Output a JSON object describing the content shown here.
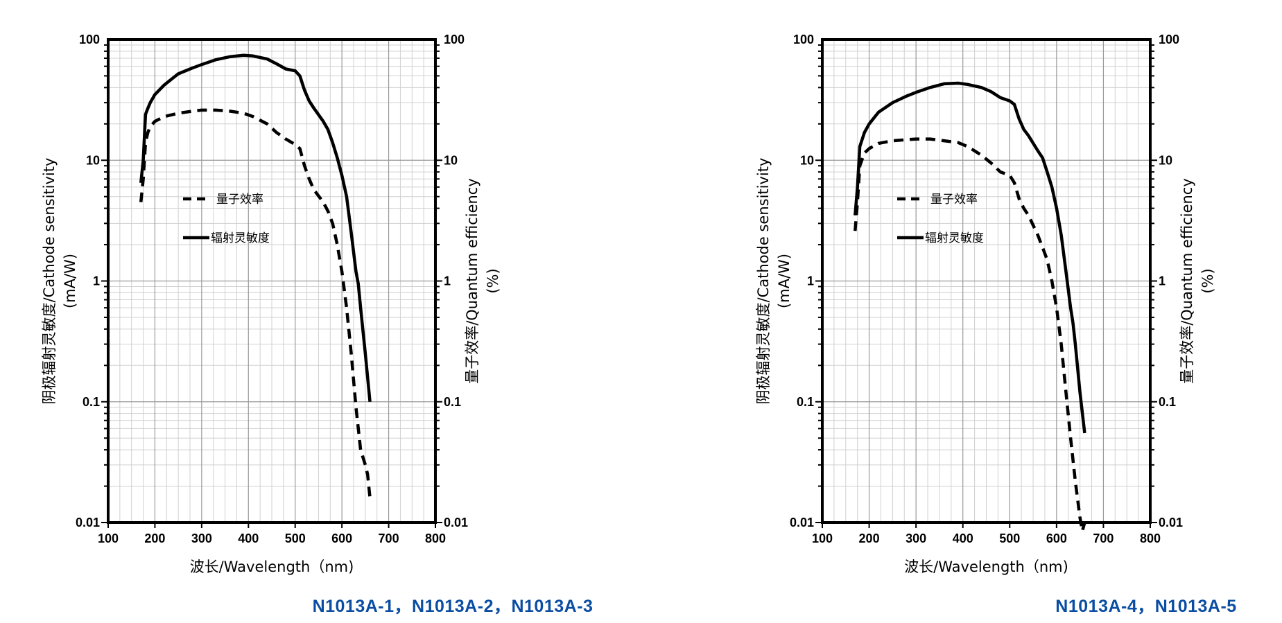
{
  "colors": {
    "text": "#000000",
    "caption": "#0a4da3",
    "grid_major": "#999999",
    "grid_minor": "#d0d0d0"
  },
  "chart_data": [
    {
      "type": "line",
      "caption": "N1013A-1，N1013A-2，N1013A-3",
      "xlabel": "波长/Wavelength（nm)",
      "ylabel_left": [
        "阴极辐射灵敏度/Cathode sensitivity",
        "(mA/W)"
      ],
      "ylabel_right": [
        "量子效率/Quantum efficiency",
        "(%)"
      ],
      "xlim": [
        100,
        800
      ],
      "ylim": [
        0.01,
        100
      ],
      "yscale": "log",
      "x_ticks": [
        "100",
        "200",
        "300",
        "400",
        "500",
        "600",
        "700",
        "800"
      ],
      "y_ticks": [
        "0.01",
        "0.1",
        "1",
        "10",
        "100"
      ],
      "legend": [
        {
          "name": "量子效率",
          "style": "dashed"
        },
        {
          "name": "辐射灵敏度",
          "style": "solid"
        }
      ],
      "series": [
        {
          "name": "辐射灵敏度",
          "style": "solid",
          "x": [
            170,
            175,
            180,
            185,
            190,
            200,
            220,
            250,
            280,
            300,
            330,
            360,
            390,
            410,
            440,
            460,
            480,
            500,
            510,
            520,
            530,
            540,
            560,
            570,
            580,
            590,
            600,
            610,
            620,
            630,
            635,
            640,
            650,
            660
          ],
          "y": [
            6.5,
            10,
            24,
            27,
            30,
            35,
            42,
            52,
            58,
            62,
            68,
            72,
            74,
            73,
            69,
            63,
            57,
            55,
            50,
            38,
            31,
            27,
            21,
            18,
            14,
            10.5,
            7.5,
            5,
            2.5,
            1.2,
            0.95,
            0.6,
            0.25,
            0.1
          ]
        },
        {
          "name": "量子效率",
          "style": "dashed",
          "x": [
            170,
            175,
            180,
            185,
            190,
            200,
            220,
            250,
            280,
            300,
            330,
            360,
            390,
            410,
            440,
            460,
            480,
            500,
            510,
            520,
            530,
            540,
            560,
            570,
            580,
            590,
            600,
            610,
            620,
            630,
            640,
            650,
            655,
            660
          ],
          "y": [
            4.5,
            7,
            14,
            17,
            19,
            21,
            23,
            24.5,
            25.5,
            26,
            26,
            25.5,
            24.5,
            23,
            20,
            17,
            15,
            13.5,
            12.5,
            9,
            7,
            5.7,
            4.5,
            3.8,
            3,
            2,
            1.2,
            0.6,
            0.25,
            0.09,
            0.04,
            0.03,
            0.025,
            0.016
          ]
        }
      ]
    },
    {
      "type": "line",
      "caption": "N1013A-4，N1013A-5",
      "xlabel": "波长/Wavelength（nm)",
      "ylabel_left": [
        "阴极辐射灵敏度/Cathode sensitivity",
        "(mA/W)"
      ],
      "ylabel_right": [
        "量子效率/Quantum efficiency",
        "(%)"
      ],
      "xlim": [
        100,
        800
      ],
      "ylim": [
        0.01,
        100
      ],
      "yscale": "log",
      "x_ticks": [
        "100",
        "200",
        "300",
        "400",
        "500",
        "600",
        "700",
        "800"
      ],
      "y_ticks": [
        "0.01",
        "0.1",
        "1",
        "10",
        "100"
      ],
      "legend": [
        {
          "name": "量子效率",
          "style": "dashed"
        },
        {
          "name": "辐射灵敏度",
          "style": "solid"
        }
      ],
      "series": [
        {
          "name": "辐射灵敏度",
          "style": "solid",
          "x": [
            170,
            175,
            180,
            190,
            200,
            220,
            250,
            280,
            300,
            330,
            360,
            390,
            410,
            440,
            460,
            480,
            500,
            510,
            520,
            530,
            540,
            560,
            570,
            580,
            590,
            600,
            610,
            620,
            630,
            635,
            640,
            650,
            660
          ],
          "y": [
            3.5,
            6,
            13,
            17,
            20,
            25,
            30,
            34,
            36.5,
            40,
            43,
            43.5,
            42.5,
            40,
            37,
            33,
            31,
            29,
            22,
            18,
            16,
            12,
            10.5,
            8,
            6,
            4,
            2.4,
            1.2,
            0.6,
            0.45,
            0.3,
            0.12,
            0.055
          ]
        },
        {
          "name": "量子效率",
          "style": "dashed",
          "x": [
            170,
            175,
            180,
            190,
            200,
            220,
            250,
            280,
            300,
            330,
            360,
            390,
            410,
            440,
            460,
            480,
            500,
            510,
            520,
            530,
            540,
            560,
            570,
            580,
            590,
            600,
            610,
            620,
            630,
            640,
            650,
            655,
            660
          ],
          "y": [
            2.6,
            4.5,
            9,
            11.5,
            12.5,
            13.8,
            14.5,
            14.8,
            15,
            15,
            14.5,
            14,
            13,
            11,
            9.5,
            8,
            7.5,
            6.5,
            4.8,
            4,
            3.5,
            2.4,
            1.9,
            1.5,
            1.0,
            0.6,
            0.3,
            0.12,
            0.05,
            0.022,
            0.011,
            0.0085,
            0.01
          ]
        }
      ]
    }
  ]
}
